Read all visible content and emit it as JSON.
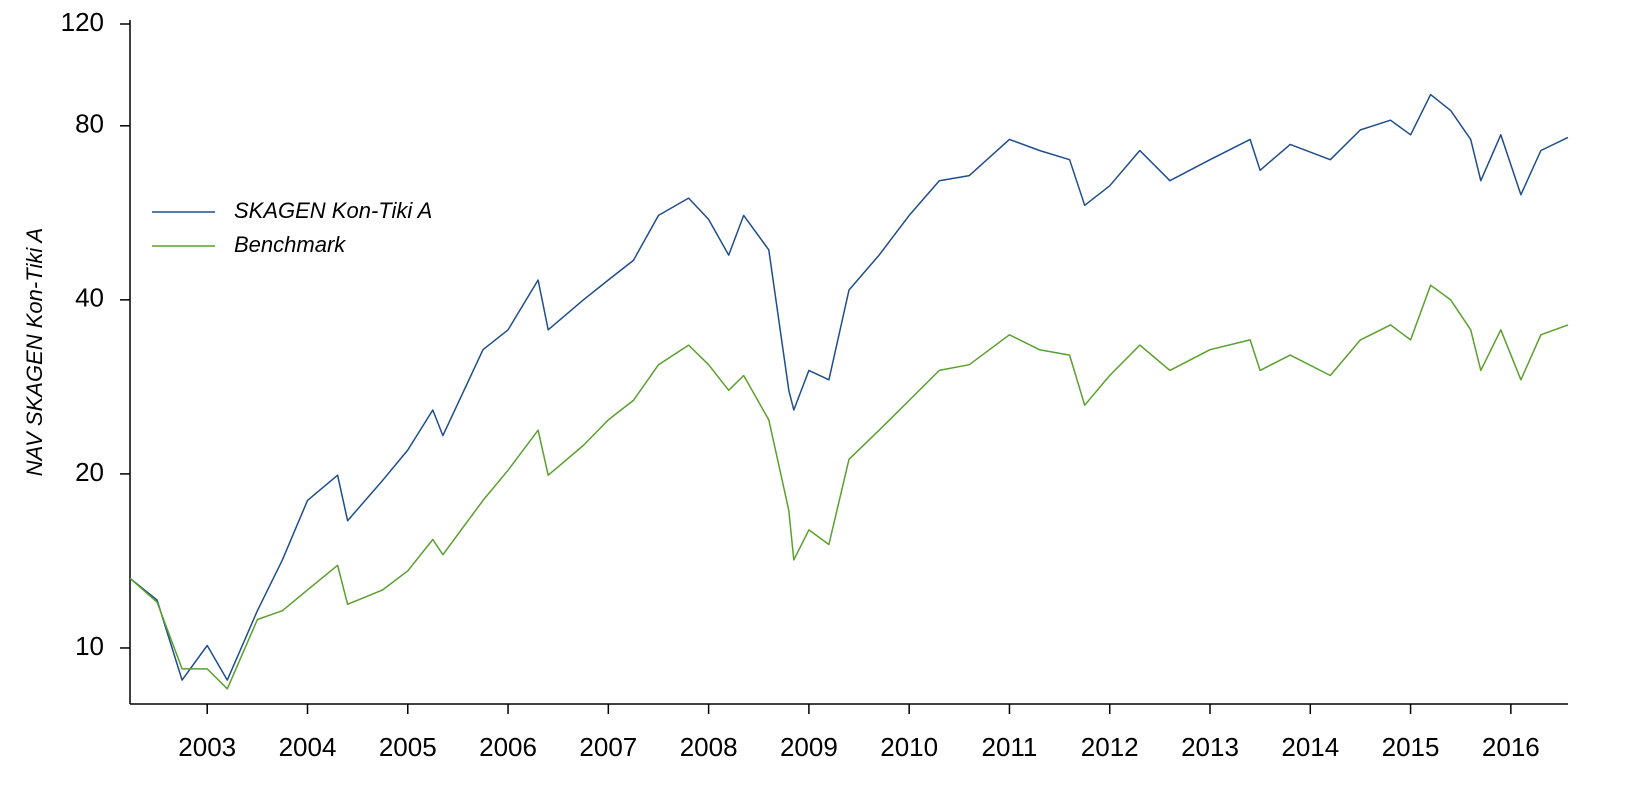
{
  "chart_data": {
    "type": "line",
    "ylabel": "NAV SKAGEN Kon-Tiki A",
    "x": [
      2002.23,
      2002.5,
      2002.75,
      2003.0,
      2003.2,
      2003.5,
      2003.75,
      2004.0,
      2004.3,
      2004.4,
      2004.75,
      2005.0,
      2005.25,
      2005.35,
      2005.75,
      2006.0,
      2006.3,
      2006.4,
      2006.75,
      2007.0,
      2007.25,
      2007.5,
      2007.8,
      2008.0,
      2008.2,
      2008.35,
      2008.6,
      2008.8,
      2008.85,
      2009.0,
      2009.2,
      2009.4,
      2009.7,
      2010.0,
      2010.3,
      2010.6,
      2011.0,
      2011.3,
      2011.6,
      2011.75,
      2012.0,
      2012.3,
      2012.6,
      2013.0,
      2013.4,
      2013.5,
      2013.8,
      2014.2,
      2014.5,
      2014.8,
      2015.0,
      2015.2,
      2015.4,
      2015.6,
      2015.7,
      2015.9,
      2016.1,
      2016.3,
      2016.57
    ],
    "series": [
      {
        "name": "SKAGEN Kon-Tiki A",
        "color": "#1f4e8c",
        "values": [
          13.2,
          12.1,
          8.8,
          10.1,
          8.8,
          11.6,
          14.2,
          18.0,
          19.9,
          16.6,
          19.5,
          22.0,
          25.8,
          23.3,
          32.8,
          35.5,
          43.3,
          35.5,
          40,
          43.3,
          46.8,
          56.0,
          60,
          55.1,
          47.8,
          56,
          48.8,
          27.9,
          25.8,
          30.2,
          29.1,
          41.6,
          47.8,
          56,
          64.3,
          65.6,
          75.8,
          72.5,
          69.9,
          58.3,
          63,
          72.5,
          64.3,
          69.9,
          75.8,
          67,
          74.3,
          69.9,
          78.7,
          81.8,
          77.2,
          90.6,
          85.0,
          75.8,
          64.3,
          77.2,
          60.8,
          72.5,
          76.4
        ]
      },
      {
        "name": "Benchmark",
        "color": "#5aa02c",
        "values": [
          13.2,
          12.0,
          9.2,
          9.2,
          8.5,
          11.2,
          11.6,
          12.6,
          13.9,
          11.9,
          12.6,
          13.6,
          15.4,
          14.5,
          18,
          20.3,
          23.8,
          19.9,
          22.4,
          24.8,
          26.8,
          30.9,
          33.4,
          30.9,
          27.9,
          29.6,
          24.8,
          17.3,
          14.2,
          16,
          15.1,
          21.2,
          23.8,
          26.8,
          30.2,
          30.9,
          34.8,
          32.8,
          32.1,
          26.3,
          29.6,
          33.4,
          30.2,
          32.8,
          34.1,
          30.2,
          32.1,
          29.6,
          34.1,
          36.2,
          34.1,
          42.4,
          40,
          35.5,
          30.2,
          35.5,
          29.1,
          34.8,
          36.2
        ]
      }
    ],
    "xlim": [
      2002.23,
      2016.57
    ],
    "xticks": [
      2003,
      2004,
      2005,
      2006,
      2007,
      2008,
      2009,
      2010,
      2011,
      2012,
      2013,
      2014,
      2015,
      2016
    ],
    "ylim": [
      8,
      120
    ],
    "yticks": [
      10,
      20,
      40,
      80,
      120
    ],
    "ylog": true,
    "legend": "upper left"
  }
}
